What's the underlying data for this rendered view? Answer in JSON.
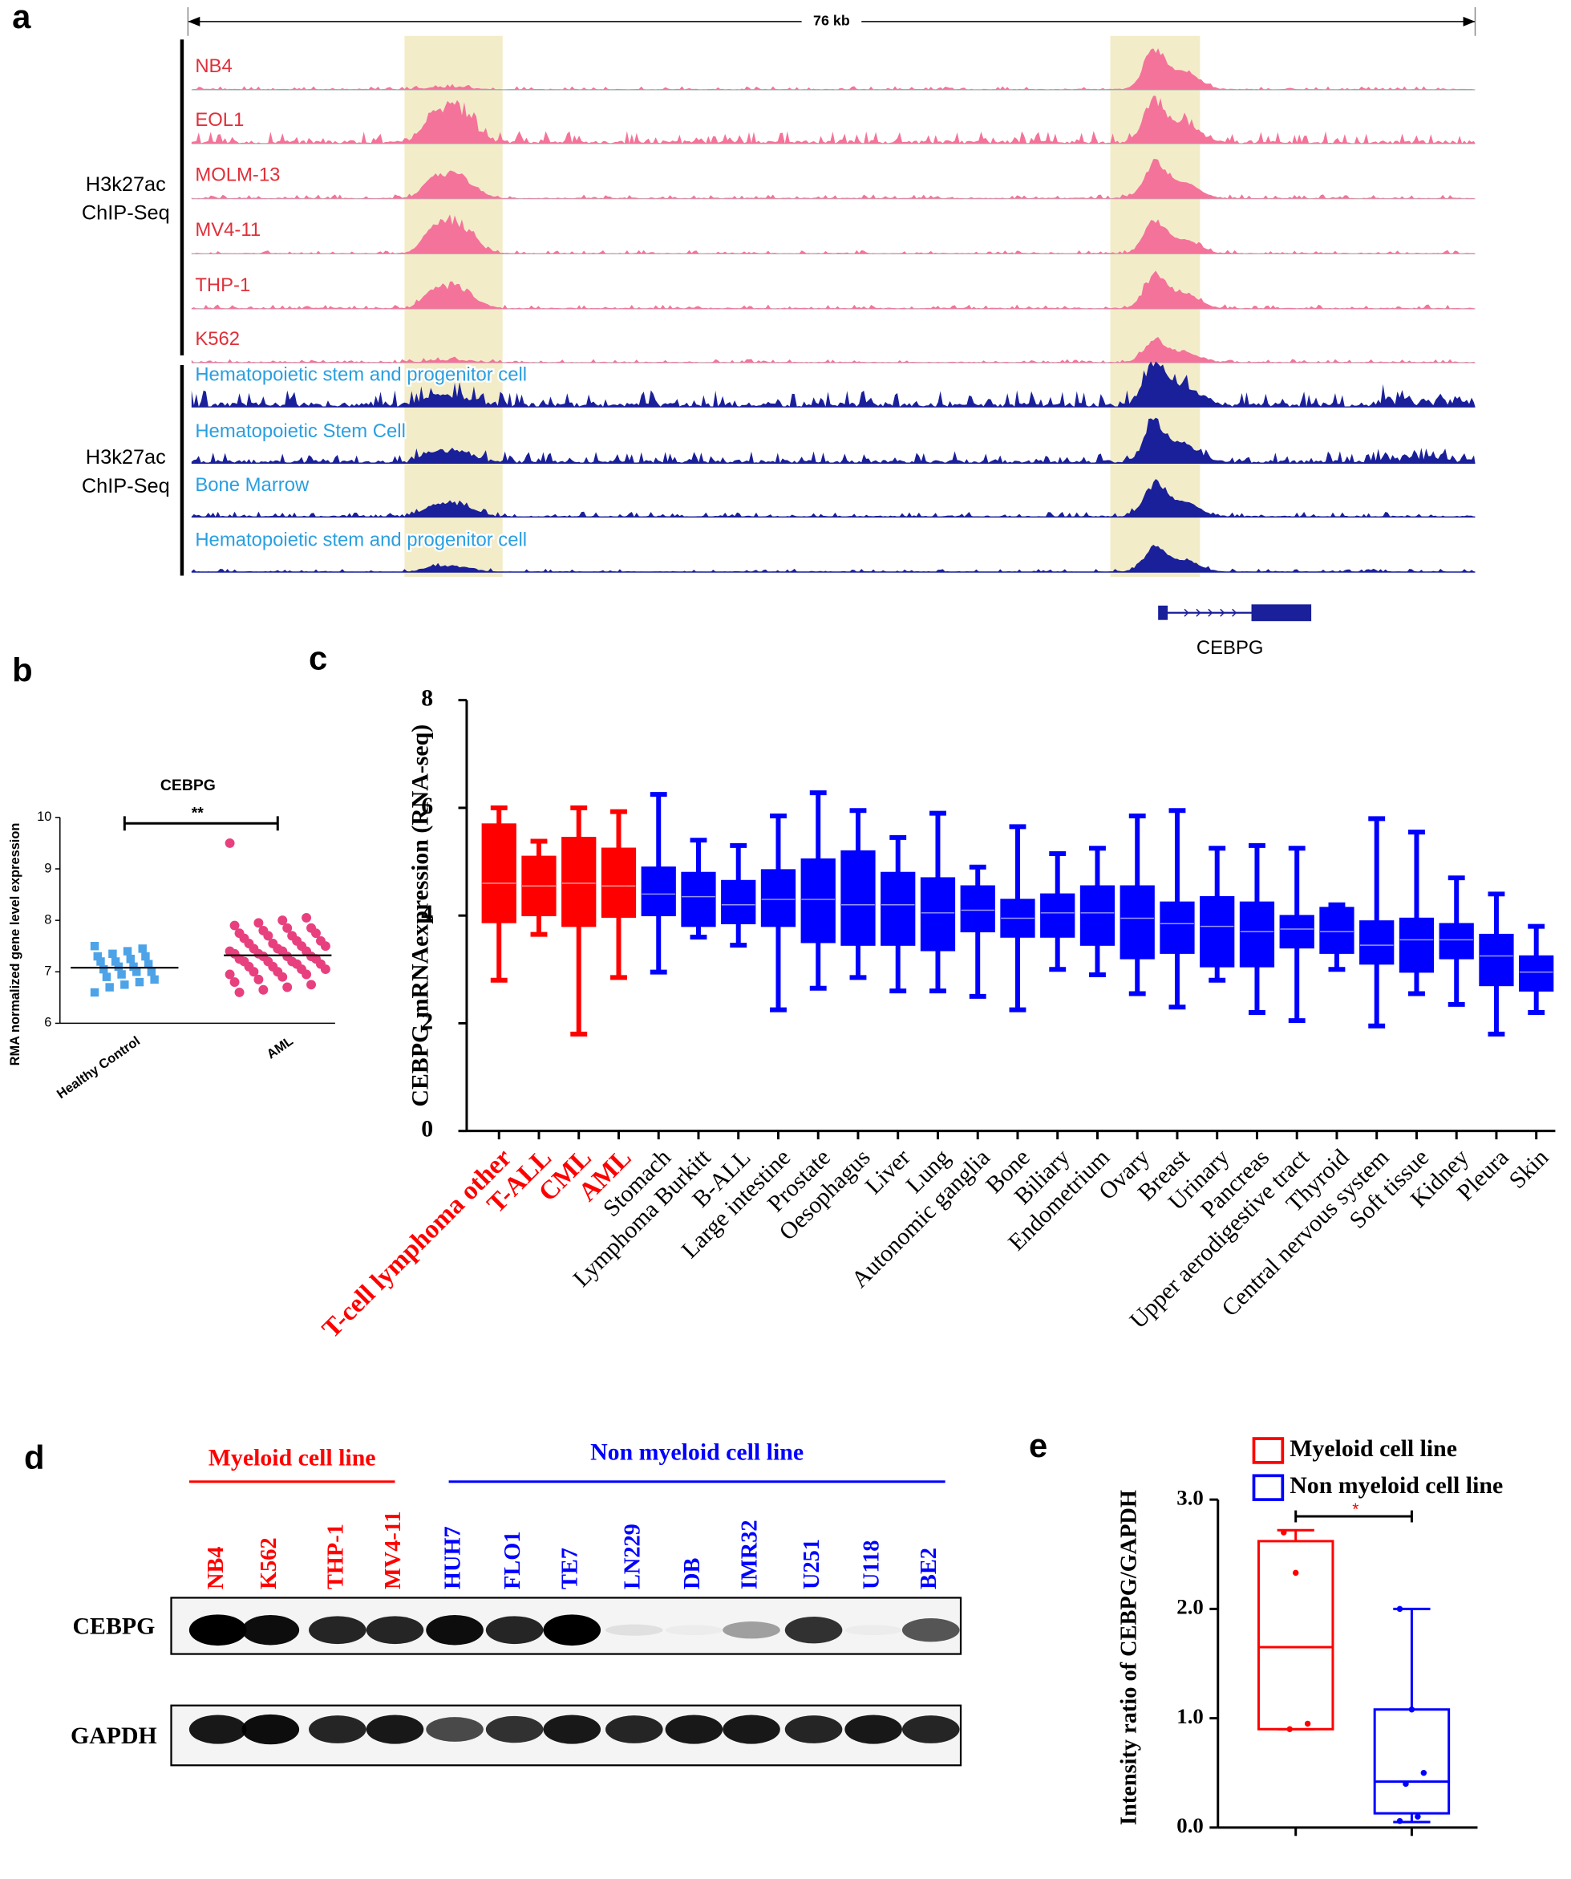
{
  "panel_labels": [
    "a",
    "b",
    "c",
    "d",
    "e"
  ],
  "tracks": {
    "scale_label": "76 kb",
    "gene": "CEBPG",
    "groups": [
      {
        "lines": [
          "H3k27ac",
          "ChIP-Seq"
        ],
        "color": "#f4739a",
        "label_color": "#e0303a",
        "tracks": [
          "NB4",
          "EOL1",
          "MOLM-13",
          "MV4-11",
          "THP-1",
          "K562"
        ]
      },
      {
        "lines": [
          "H3k27ac",
          "ChIP-Seq"
        ],
        "color": "#1a1f9a",
        "label_color": "#2a9fe0",
        "tracks": [
          "Hematopoietic stem and progenitor cell",
          "Hematopoietic Stem Cell",
          "Bone Marrow",
          "Hematopoietic stem and progenitor cell"
        ]
      }
    ]
  },
  "chart_data": [
    {
      "type": "dot",
      "title": "CEBPG",
      "y_label": "RMA normalized gene level expression",
      "categories": [
        "Healthy Control",
        "AML"
      ],
      "colors": [
        "#4da3e8",
        "#e8407f"
      ],
      "significance": "**",
      "ylim": [
        6,
        10
      ],
      "yticks": [
        6,
        7,
        8,
        9,
        10
      ],
      "means": [
        7.08,
        7.32
      ],
      "points": [
        [
          7.5,
          7.45,
          7.4,
          7.35,
          7.3,
          7.3,
          7.25,
          7.2,
          7.2,
          7.15,
          7.1,
          7.1,
          7.05,
          7.0,
          7.0,
          6.95,
          6.9,
          6.85,
          6.8,
          6.75,
          6.7,
          6.6
        ],
        [
          9.5,
          8.05,
          8.0,
          7.95,
          7.9,
          7.85,
          7.85,
          7.8,
          7.75,
          7.75,
          7.7,
          7.7,
          7.65,
          7.6,
          7.6,
          7.55,
          7.55,
          7.5,
          7.5,
          7.45,
          7.45,
          7.4,
          7.4,
          7.4,
          7.35,
          7.35,
          7.3,
          7.3,
          7.3,
          7.25,
          7.25,
          7.2,
          7.2,
          7.2,
          7.15,
          7.15,
          7.1,
          7.1,
          7.05,
          7.05,
          7.0,
          7.0,
          6.95,
          6.95,
          6.9,
          6.85,
          6.8,
          6.75,
          6.7,
          6.65,
          6.6
        ]
      ]
    },
    {
      "type": "box",
      "y_label": "CEBPG mRNAexpression (RNA-seq)",
      "categories": [
        "T-cell lymphoma other",
        "T-ALL",
        "CML",
        "AML",
        "Stomach",
        "Lymphoma Burkitt",
        "B-ALL",
        "Large intestine",
        "Prostate",
        "Oesophagus",
        "Liver",
        "Lung",
        "Autonomic ganglia",
        "Bone",
        "Biliary",
        "Endometrium",
        "Ovary",
        "Breast",
        "Urinary",
        "Pancreas",
        "Upper aerodigestive tract",
        "Thyroid",
        "Central nervous system",
        "Soft tissue",
        "Kidney",
        "Pleura",
        "Skin"
      ],
      "colors": [
        "#ff0000",
        "#ff0000",
        "#ff0000",
        "#ff0000",
        "#0000ff",
        "#0000ff",
        "#0000ff",
        "#0000ff",
        "#0000ff",
        "#0000ff",
        "#0000ff",
        "#0000ff",
        "#0000ff",
        "#0000ff",
        "#0000ff",
        "#0000ff",
        "#0000ff",
        "#0000ff",
        "#0000ff",
        "#0000ff",
        "#0000ff",
        "#0000ff",
        "#0000ff",
        "#0000ff",
        "#0000ff",
        "#0000ff",
        "#0000ff"
      ],
      "ylim": [
        0,
        8
      ],
      "yticks": [
        0,
        2,
        4,
        6,
        8
      ],
      "boxes": [
        {
          "min": 2.8,
          "q1": 3.87,
          "median": 4.6,
          "q3": 5.7,
          "max": 6.0
        },
        {
          "min": 3.65,
          "q1": 4.0,
          "median": 4.55,
          "q3": 5.1,
          "max": 5.38
        },
        {
          "min": 1.8,
          "q1": 3.8,
          "median": 4.6,
          "q3": 5.45,
          "max": 6.0
        },
        {
          "min": 2.85,
          "q1": 3.97,
          "median": 4.55,
          "q3": 5.25,
          "max": 5.93
        },
        {
          "min": 2.95,
          "q1": 4.0,
          "median": 4.4,
          "q3": 4.9,
          "max": 6.25
        },
        {
          "min": 3.6,
          "q1": 3.8,
          "median": 4.35,
          "q3": 4.8,
          "max": 5.4
        },
        {
          "min": 3.45,
          "q1": 3.85,
          "median": 4.2,
          "q3": 4.65,
          "max": 5.3
        },
        {
          "min": 2.25,
          "q1": 3.8,
          "median": 4.3,
          "q3": 4.85,
          "max": 5.85
        },
        {
          "min": 2.65,
          "q1": 3.5,
          "median": 4.3,
          "q3": 5.05,
          "max": 6.28
        },
        {
          "min": 2.85,
          "q1": 3.45,
          "median": 4.2,
          "q3": 5.2,
          "max": 5.95
        },
        {
          "min": 2.6,
          "q1": 3.45,
          "median": 4.2,
          "q3": 4.8,
          "max": 5.45
        },
        {
          "min": 2.6,
          "q1": 3.35,
          "median": 4.05,
          "q3": 4.7,
          "max": 5.9
        },
        {
          "min": 2.5,
          "q1": 3.7,
          "median": 4.1,
          "q3": 4.55,
          "max": 4.9
        },
        {
          "min": 2.25,
          "q1": 3.6,
          "median": 3.95,
          "q3": 4.3,
          "max": 5.65
        },
        {
          "min": 3.0,
          "q1": 3.6,
          "median": 4.05,
          "q3": 4.4,
          "max": 5.15
        },
        {
          "min": 2.9,
          "q1": 3.45,
          "median": 4.05,
          "q3": 4.55,
          "max": 5.25
        },
        {
          "min": 2.55,
          "q1": 3.2,
          "median": 3.95,
          "q3": 4.55,
          "max": 5.85
        },
        {
          "min": 2.3,
          "q1": 3.3,
          "median": 3.85,
          "q3": 4.25,
          "max": 5.95
        },
        {
          "min": 2.8,
          "q1": 3.05,
          "median": 3.8,
          "q3": 4.35,
          "max": 5.25
        },
        {
          "min": 2.2,
          "q1": 3.05,
          "median": 3.7,
          "q3": 4.25,
          "max": 5.3
        },
        {
          "min": 2.05,
          "q1": 3.4,
          "median": 3.75,
          "q3": 4.0,
          "max": 5.25
        },
        {
          "min": 3.0,
          "q1": 3.3,
          "median": 3.7,
          "q3": 4.15,
          "max": 4.2
        },
        {
          "min": 1.95,
          "q1": 3.1,
          "median": 3.45,
          "q3": 3.9,
          "max": 5.8
        },
        {
          "min": 2.55,
          "q1": 2.95,
          "median": 3.55,
          "q3": 3.95,
          "max": 5.55
        },
        {
          "min": 2.35,
          "q1": 3.2,
          "median": 3.55,
          "q3": 3.85,
          "max": 4.7
        },
        {
          "min": 1.8,
          "q1": 2.7,
          "median": 3.25,
          "q3": 3.65,
          "max": 4.4
        },
        {
          "min": 2.2,
          "q1": 2.6,
          "median": 2.95,
          "q3": 3.25,
          "max": 3.8
        }
      ]
    },
    {
      "type": "box",
      "y_label": "Intensity ratio of CEBPG/GAPDH",
      "categories": [
        "Myeloid cell line",
        "Non myeloid cell line"
      ],
      "colors": [
        "#ff0000",
        "#0000ff"
      ],
      "significance": "*",
      "legend": "top",
      "ylim": [
        0,
        3
      ],
      "yticks": [
        {
          "value": 0,
          "label": "0.0"
        },
        {
          "value": 1,
          "label": "1.0"
        },
        {
          "value": 2,
          "label": "2.0"
        },
        {
          "value": 3,
          "label": "3.0"
        }
      ],
      "boxes": [
        {
          "min": 0.9,
          "q1": 0.9,
          "median": 1.65,
          "q3": 2.62,
          "max": 2.72
        },
        {
          "min": 0.05,
          "q1": 0.13,
          "median": 0.42,
          "q3": 1.08,
          "max": 2.0
        }
      ],
      "points": [
        [
          2.7,
          2.33,
          0.95,
          0.9
        ],
        [
          2.0,
          1.08,
          0.5,
          0.4,
          0.1,
          0.06
        ]
      ]
    }
  ],
  "blot": {
    "groups": [
      {
        "label": "Myeloid cell line",
        "color": "#ff0000",
        "lanes": [
          "NB4",
          "K562",
          "THP-1",
          "MV4-11"
        ]
      },
      {
        "label": "Non myeloid cell line",
        "color": "#0000ff",
        "lanes": [
          "HUH7",
          "FLO1",
          "TE7",
          "LN229",
          "DB",
          "IMR32",
          "U251",
          "U118",
          "BE2"
        ]
      }
    ],
    "rows": [
      {
        "label": "CEBPG",
        "intensity": [
          1,
          0.95,
          0.85,
          0.85,
          0.95,
          0.85,
          1,
          0.08,
          0.03,
          0.35,
          0.8,
          0.03,
          0.65
        ]
      },
      {
        "label": "GAPDH",
        "intensity": [
          0.9,
          0.95,
          0.85,
          0.9,
          0.7,
          0.8,
          0.9,
          0.85,
          0.9,
          0.9,
          0.85,
          0.9,
          0.85
        ]
      }
    ]
  }
}
